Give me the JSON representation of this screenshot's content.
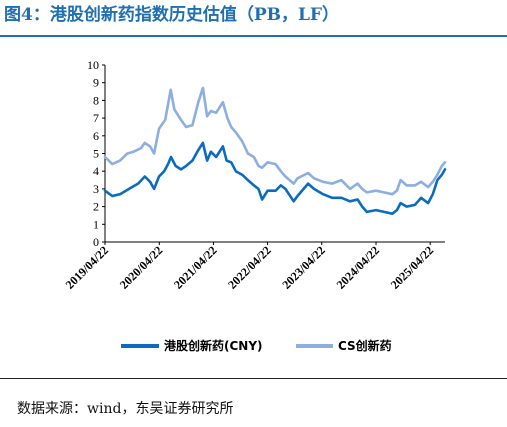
{
  "title": "图4：港股创新药指数历史估值（PB，LF）",
  "source": "数据来源：wind，东吴证券研究所",
  "chart_data": {
    "type": "line",
    "title": "图4：港股创新药指数历史估值（PB，LF）",
    "xlabel": "",
    "ylabel": "",
    "ylim": [
      0,
      10
    ],
    "yticks": [
      0,
      1,
      2,
      3,
      4,
      5,
      6,
      7,
      8,
      9,
      10
    ],
    "xlim": [
      "2019-04-22",
      "2025-07-31"
    ],
    "xticks": [
      "2019/04/22",
      "2020/04/22",
      "2021/04/22",
      "2022/04/22",
      "2023/04/22",
      "2024/04/22",
      "2025/04/22"
    ],
    "grid": false,
    "legend_position": "bottom",
    "series": [
      {
        "name": "港股创新药(CNY)",
        "color": "#0b6cbf",
        "points": [
          [
            "2019-04-22",
            2.9
          ],
          [
            "2019-06-10",
            2.6
          ],
          [
            "2019-08-01",
            2.7
          ],
          [
            "2019-10-01",
            3.0
          ],
          [
            "2019-12-01",
            3.3
          ],
          [
            "2020-01-15",
            3.7
          ],
          [
            "2020-02-20",
            3.4
          ],
          [
            "2020-03-18",
            3.0
          ],
          [
            "2020-04-20",
            3.7
          ],
          [
            "2020-05-25",
            4.0
          ],
          [
            "2020-06-20",
            4.4
          ],
          [
            "2020-07-10",
            4.8
          ],
          [
            "2020-08-10",
            4.3
          ],
          [
            "2020-09-15",
            4.1
          ],
          [
            "2020-10-20",
            4.3
          ],
          [
            "2020-12-01",
            4.6
          ],
          [
            "2021-01-10",
            5.2
          ],
          [
            "2021-02-10",
            5.6
          ],
          [
            "2021-03-10",
            4.6
          ],
          [
            "2021-04-05",
            5.1
          ],
          [
            "2021-05-10",
            4.8
          ],
          [
            "2021-06-25",
            5.4
          ],
          [
            "2021-07-20",
            4.6
          ],
          [
            "2021-08-20",
            4.5
          ],
          [
            "2021-09-20",
            4.0
          ],
          [
            "2021-11-01",
            3.8
          ],
          [
            "2021-12-10",
            3.5
          ],
          [
            "2022-01-20",
            3.2
          ],
          [
            "2022-02-20",
            3.0
          ],
          [
            "2022-03-16",
            2.4
          ],
          [
            "2022-04-22",
            2.9
          ],
          [
            "2022-06-15",
            2.9
          ],
          [
            "2022-07-20",
            3.2
          ],
          [
            "2022-08-20",
            3.0
          ],
          [
            "2022-10-15",
            2.3
          ],
          [
            "2022-11-10",
            2.6
          ],
          [
            "2023-01-20",
            3.3
          ],
          [
            "2023-03-01",
            3.0
          ],
          [
            "2023-05-01",
            2.7
          ],
          [
            "2023-07-01",
            2.5
          ],
          [
            "2023-09-01",
            2.5
          ],
          [
            "2023-10-30",
            2.3
          ],
          [
            "2023-12-20",
            2.4
          ],
          [
            "2024-01-20",
            2.0
          ],
          [
            "2024-02-20",
            1.7
          ],
          [
            "2024-04-22",
            1.8
          ],
          [
            "2024-06-15",
            1.7
          ],
          [
            "2024-08-10",
            1.6
          ],
          [
            "2024-09-10",
            1.8
          ],
          [
            "2024-10-05",
            2.2
          ],
          [
            "2024-11-15",
            2.0
          ],
          [
            "2025-01-10",
            2.1
          ],
          [
            "2025-02-20",
            2.5
          ],
          [
            "2025-04-08",
            2.2
          ],
          [
            "2025-05-10",
            2.7
          ],
          [
            "2025-06-10",
            3.5
          ],
          [
            "2025-07-10",
            3.8
          ],
          [
            "2025-07-31",
            4.1
          ]
        ]
      },
      {
        "name": "CS创新药",
        "color": "#8caee0",
        "points": [
          [
            "2019-04-22",
            4.8
          ],
          [
            "2019-06-10",
            4.4
          ],
          [
            "2019-08-01",
            4.6
          ],
          [
            "2019-09-20",
            5.0
          ],
          [
            "2019-11-01",
            5.1
          ],
          [
            "2019-12-20",
            5.3
          ],
          [
            "2020-01-15",
            5.6
          ],
          [
            "2020-02-20",
            5.4
          ],
          [
            "2020-03-18",
            5.0
          ],
          [
            "2020-04-20",
            6.4
          ],
          [
            "2020-06-01",
            6.9
          ],
          [
            "2020-07-08",
            8.6
          ],
          [
            "2020-08-01",
            7.5
          ],
          [
            "2020-09-15",
            6.9
          ],
          [
            "2020-10-20",
            6.5
          ],
          [
            "2020-12-01",
            6.6
          ],
          [
            "2021-01-10",
            7.9
          ],
          [
            "2021-02-10",
            8.7
          ],
          [
            "2021-03-10",
            7.1
          ],
          [
            "2021-04-05",
            7.4
          ],
          [
            "2021-05-10",
            7.3
          ],
          [
            "2021-06-25",
            7.9
          ],
          [
            "2021-07-25",
            7.0
          ],
          [
            "2021-08-20",
            6.5
          ],
          [
            "2021-09-20",
            6.2
          ],
          [
            "2021-11-01",
            5.7
          ],
          [
            "2021-12-10",
            5.0
          ],
          [
            "2022-01-20",
            4.8
          ],
          [
            "2022-02-20",
            4.3
          ],
          [
            "2022-03-16",
            4.2
          ],
          [
            "2022-04-22",
            4.5
          ],
          [
            "2022-06-15",
            4.4
          ],
          [
            "2022-07-20",
            4.0
          ],
          [
            "2022-08-20",
            3.7
          ],
          [
            "2022-10-15",
            3.3
          ],
          [
            "2022-11-10",
            3.6
          ],
          [
            "2023-01-20",
            3.9
          ],
          [
            "2023-03-01",
            3.6
          ],
          [
            "2023-05-01",
            3.4
          ],
          [
            "2023-07-01",
            3.3
          ],
          [
            "2023-09-01",
            3.5
          ],
          [
            "2023-10-30",
            3.0
          ],
          [
            "2023-12-20",
            3.3
          ],
          [
            "2024-01-20",
            3.0
          ],
          [
            "2024-02-20",
            2.8
          ],
          [
            "2024-04-22",
            2.9
          ],
          [
            "2024-06-15",
            2.8
          ],
          [
            "2024-08-10",
            2.7
          ],
          [
            "2024-09-10",
            2.9
          ],
          [
            "2024-10-05",
            3.5
          ],
          [
            "2024-11-15",
            3.2
          ],
          [
            "2025-01-10",
            3.2
          ],
          [
            "2025-02-20",
            3.4
          ],
          [
            "2025-04-08",
            3.1
          ],
          [
            "2025-05-10",
            3.4
          ],
          [
            "2025-06-10",
            3.8
          ],
          [
            "2025-07-10",
            4.3
          ],
          [
            "2025-07-31",
            4.5
          ]
        ]
      }
    ]
  }
}
